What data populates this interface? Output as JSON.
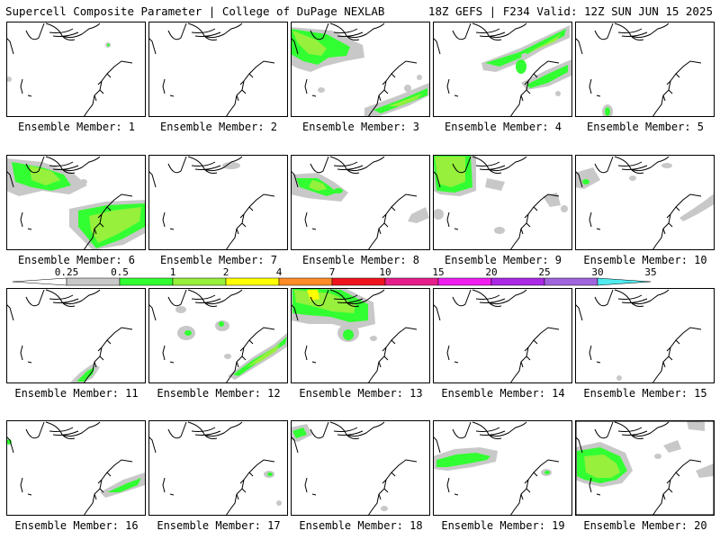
{
  "header": {
    "left": "Supercell Composite Parameter | College of DuPage NEXLAB",
    "right": "18Z GEFS | F234 Valid: 12Z SUN JUN 15 2025"
  },
  "label_prefix": "Ensemble Member: ",
  "members": [
    1,
    2,
    3,
    4,
    5,
    6,
    7,
    8,
    9,
    10,
    11,
    12,
    13,
    14,
    15,
    16,
    17,
    18,
    19,
    20
  ],
  "selected_member": 20,
  "legend": {
    "labels": [
      "0.25",
      "0.5",
      "1",
      "2",
      "4",
      "7",
      "10",
      "15",
      "20",
      "25",
      "30",
      "35"
    ],
    "colors": [
      "#c8c8c8",
      "#32ff32",
      "#96f03c",
      "#ffff00",
      "#ff8c28",
      "#f0141e",
      "#e61e8c",
      "#f01ef0",
      "#aa28e6",
      "#a064dc",
      "#50ebf0"
    ]
  },
  "colors": {
    "fill_low": "#c8c8c8",
    "fill_mid": "#32ff32",
    "fill_high": "#96f03c",
    "fill_top": "#ffff00",
    "coast": "#000000"
  }
}
